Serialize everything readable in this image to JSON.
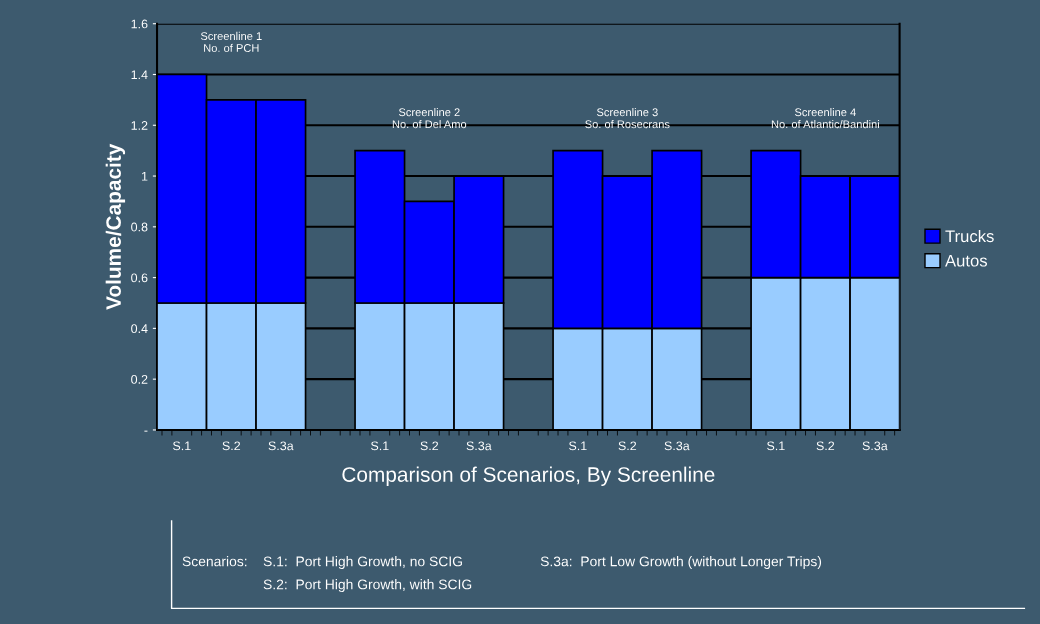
{
  "chart_data": {
    "type": "bar",
    "stacked": true,
    "ylabel": "Volume/Capacity",
    "xlabel": "Comparison of Scenarios, By Screenline",
    "categories": [
      "S.1",
      "S.2",
      "S.3a",
      null,
      "S.1",
      "S.2",
      "S.3a",
      null,
      "S.1",
      "S.2",
      "S.3a",
      null,
      "S.1",
      "S.2",
      "S.3a"
    ],
    "series": [
      {
        "name": "Autos",
        "color": "#99ccff",
        "values": [
          0.5,
          0.5,
          0.5,
          null,
          0.5,
          0.5,
          0.5,
          null,
          0.4,
          0.4,
          0.4,
          null,
          0.6,
          0.6,
          0.6
        ]
      },
      {
        "name": "Trucks",
        "color": "#0000ff",
        "values": [
          0.9,
          0.8,
          0.8,
          null,
          0.6,
          0.4,
          0.5,
          null,
          0.7,
          0.6,
          0.7,
          null,
          0.5,
          0.4,
          0.4
        ]
      }
    ],
    "ylim": [
      0,
      1.6
    ],
    "yticks": [
      {
        "value": 0,
        "label": "-"
      },
      0.2,
      0.4,
      0.6,
      0.8,
      1,
      1.2,
      1.4,
      1.6
    ],
    "grid": "y",
    "legend": "right",
    "annotations": [
      "Screenline 1\nNo. of PCH",
      "Screenline 2\nNo. of Del Amo",
      "Screenline 3\nSo. of Rosecrans",
      "Screenline 4\nNo. of Atlantic/Bandini",
      "Scenarios:    S.1:  Port High Growth, no SCIG                    S.3a:  Port Low Growth (without Longer Trips)\n                     S.2:  Port High Growth, with SCIG"
    ]
  }
}
